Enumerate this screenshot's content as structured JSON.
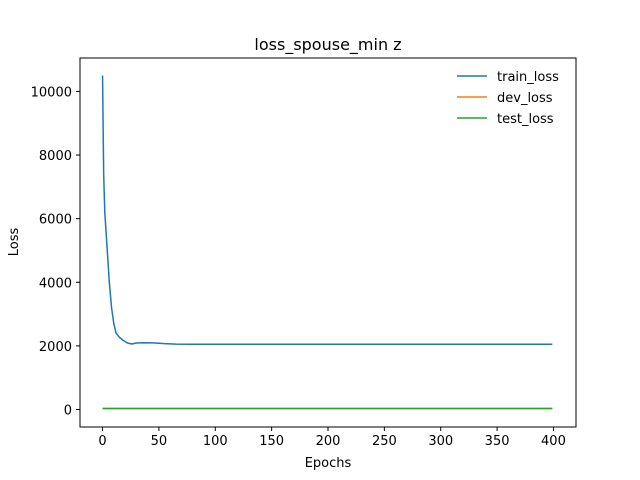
{
  "chart_data": {
    "type": "line",
    "title": "loss_spouse_min z",
    "xlabel": "Epochs",
    "ylabel": "Loss",
    "xlim": [
      -20,
      420
    ],
    "ylim": [
      -550,
      11050
    ],
    "xticks": [
      0,
      50,
      100,
      150,
      200,
      250,
      300,
      350,
      400
    ],
    "yticks": [
      0,
      2000,
      4000,
      6000,
      8000,
      10000
    ],
    "grid": false,
    "legend_position": "top-right",
    "series": [
      {
        "name": "train_loss",
        "color": "#1f77b4",
        "points": [
          [
            0,
            10500
          ],
          [
            1,
            7400
          ],
          [
            2,
            6200
          ],
          [
            4,
            5100
          ],
          [
            6,
            4000
          ],
          [
            8,
            3200
          ],
          [
            10,
            2700
          ],
          [
            12,
            2400
          ],
          [
            15,
            2270
          ],
          [
            18,
            2180
          ],
          [
            22,
            2090
          ],
          [
            26,
            2060
          ],
          [
            30,
            2090
          ],
          [
            35,
            2100
          ],
          [
            45,
            2095
          ],
          [
            55,
            2070
          ],
          [
            65,
            2055
          ],
          [
            80,
            2050
          ],
          [
            120,
            2050
          ],
          [
            200,
            2050
          ],
          [
            300,
            2050
          ],
          [
            399,
            2050
          ]
        ]
      },
      {
        "name": "dev_loss",
        "color": "#ff7f0e",
        "points": [
          [
            0,
            30
          ],
          [
            399,
            30
          ]
        ]
      },
      {
        "name": "test_loss",
        "color": "#2ca02c",
        "points": [
          [
            0,
            30
          ],
          [
            399,
            30
          ]
        ]
      }
    ]
  }
}
